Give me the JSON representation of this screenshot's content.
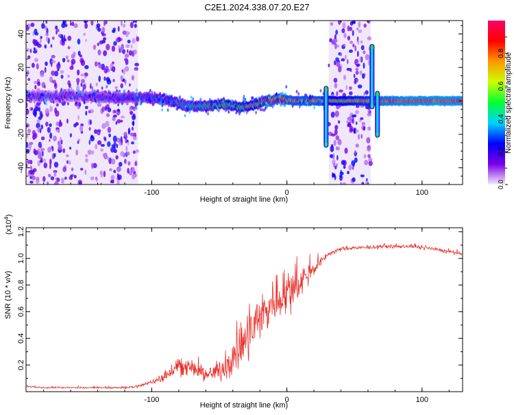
{
  "title": "C2E1.2024.338.07.20.E27",
  "chart_data": [
    {
      "type": "heatmap",
      "xlabel": "Height of straight line (km)",
      "ylabel": "Frequency (Hz)",
      "xlim": [
        -193,
        130
      ],
      "ylim": [
        -50,
        48
      ],
      "xticks": [
        -100,
        0,
        100
      ],
      "xtick_labels": [
        "-100",
        "0",
        "100"
      ],
      "yticks": [
        40,
        20,
        0,
        -20,
        -40
      ],
      "ytick_labels": [
        "40",
        "20",
        "0",
        "-20",
        "-40"
      ],
      "colorbar": {
        "label": "Normalized spectral amplitude",
        "range": [
          0,
          1
        ],
        "ticks": [
          0.0,
          0.2,
          0.4,
          0.6,
          0.8
        ],
        "tick_labels": [
          "0.0",
          "0.2",
          "0.4",
          "0.6",
          "0.8"
        ],
        "colors": [
          "#f4ecfb",
          "#7a00e6",
          "#0000ff",
          "#00d4ff",
          "#00ff33",
          "#ccff00",
          "#ff9900",
          "#ff0000",
          "#ff0066"
        ]
      },
      "noise_regions": [
        [
          -193,
          -110
        ],
        [
          31,
          62
        ]
      ],
      "ridge": {
        "x": [
          -193,
          -160,
          -130,
          -110,
          -90,
          -75,
          -60,
          -45,
          -35,
          -25,
          -15,
          -5,
          5,
          15,
          25,
          30,
          40,
          62,
          70,
          90,
          110,
          130
        ],
        "freq": [
          3,
          3,
          2,
          2,
          1,
          -3,
          -3,
          -2,
          -4,
          -2,
          0,
          1,
          0,
          0,
          0,
          0,
          0,
          0,
          0,
          0,
          0,
          0
        ],
        "amplitude": [
          0.2,
          0.2,
          0.25,
          0.3,
          0.35,
          0.45,
          0.5,
          0.55,
          0.6,
          0.7,
          0.8,
          0.85,
          0.85,
          0.85,
          0.85,
          0.7,
          0.7,
          0.8,
          0.9,
          0.95,
          0.95,
          0.95
        ]
      },
      "spikes": [
        {
          "x": 29,
          "fmin": -28,
          "fmax": 9
        },
        {
          "x": 63,
          "fmin": -5,
          "fmax": 34
        },
        {
          "x": 67,
          "fmin": -22,
          "fmax": 6
        }
      ]
    },
    {
      "type": "line",
      "xlabel": "Height of straight line (km)",
      "ylabel": "SNR (10 * v/v)",
      "scale_label": "(x10",
      "scale_exp": "4",
      "scale_close": ")",
      "xlim": [
        -193,
        130
      ],
      "ylim": [
        0,
        1.23
      ],
      "xticks": [
        -100,
        0,
        100
      ],
      "xtick_labels": [
        "-100",
        "0",
        "100"
      ],
      "yticks": [
        0.2,
        0.4,
        0.6,
        0.8,
        1.0,
        1.2
      ],
      "ytick_labels": [
        "0.2",
        "0.4",
        "0.6",
        "0.8",
        "1.0",
        "1.2"
      ],
      "color": "#e8302a",
      "series": [
        {
          "x": [
            -193,
            -180,
            -160,
            -140,
            -120,
            -110,
            -100,
            -90,
            -80,
            -70,
            -60,
            -50,
            -40,
            -30,
            -20,
            -10,
            0,
            10,
            20,
            30,
            40,
            50,
            60,
            70,
            80,
            90,
            100,
            110,
            120,
            130
          ],
          "values": [
            0.04,
            0.03,
            0.03,
            0.03,
            0.03,
            0.04,
            0.07,
            0.12,
            0.2,
            0.18,
            0.12,
            0.16,
            0.25,
            0.38,
            0.55,
            0.68,
            0.76,
            0.82,
            0.92,
            1.03,
            1.07,
            1.08,
            1.08,
            1.09,
            1.09,
            1.09,
            1.08,
            1.07,
            1.05,
            1.03
          ],
          "noise": [
            0.01,
            0.01,
            0.01,
            0.01,
            0.01,
            0.02,
            0.03,
            0.06,
            0.12,
            0.1,
            0.07,
            0.12,
            0.2,
            0.28,
            0.32,
            0.3,
            0.25,
            0.18,
            0.08,
            0.03,
            0.02,
            0.02,
            0.02,
            0.02,
            0.02,
            0.02,
            0.02,
            0.02,
            0.02,
            0.02
          ]
        }
      ]
    }
  ]
}
